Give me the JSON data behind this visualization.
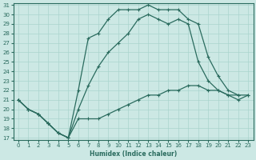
{
  "xlabel": "Humidex (Indice chaleur)",
  "bg_color": "#cce8e4",
  "line_color": "#2a6b5e",
  "grid_color": "#aad4ce",
  "xlim": [
    -0.5,
    23.5
  ],
  "ylim": [
    17,
    31
  ],
  "xticks": [
    0,
    1,
    2,
    3,
    4,
    5,
    6,
    7,
    8,
    9,
    10,
    11,
    12,
    13,
    14,
    15,
    16,
    17,
    18,
    19,
    20,
    21,
    22,
    23
  ],
  "yticks": [
    17,
    18,
    19,
    20,
    21,
    22,
    23,
    24,
    25,
    26,
    27,
    28,
    29,
    30,
    31
  ],
  "curve_top": {
    "x": [
      0,
      1,
      2,
      3,
      4,
      5,
      6,
      7,
      8,
      9,
      10,
      11,
      12,
      13,
      14,
      15,
      16,
      17,
      18,
      19,
      20,
      21,
      22
    ],
    "y": [
      21,
      20,
      19.5,
      18.5,
      17.5,
      17,
      22,
      27.5,
      28,
      29.5,
      30.5,
      30.5,
      30.5,
      31,
      30.5,
      30.5,
      30.5,
      29.5,
      29,
      25.5,
      23.5,
      22,
      21.5
    ]
  },
  "curve_mid": {
    "x": [
      0,
      1,
      2,
      3,
      4,
      5,
      6,
      7,
      8,
      9,
      10,
      11,
      12,
      13,
      14,
      15,
      16,
      17,
      18,
      19,
      20,
      21,
      22,
      23
    ],
    "y": [
      21,
      20,
      19.5,
      18.5,
      17.5,
      17,
      20,
      22.5,
      24.5,
      26,
      27,
      28,
      29.5,
      30,
      29.5,
      29,
      29.5,
      29,
      25,
      23,
      22,
      21.5,
      21,
      21.5
    ]
  },
  "curve_bot": {
    "x": [
      0,
      1,
      2,
      3,
      4,
      5,
      6,
      7,
      8,
      9,
      10,
      11,
      12,
      13,
      14,
      15,
      16,
      17,
      18,
      19,
      20,
      21,
      22,
      23
    ],
    "y": [
      21,
      20,
      19.5,
      18.5,
      17.5,
      17,
      19,
      19,
      19,
      19.5,
      20,
      20.5,
      21,
      21.5,
      21.5,
      22,
      22,
      22.5,
      22.5,
      22,
      22,
      21.5,
      21.5,
      21.5
    ]
  }
}
